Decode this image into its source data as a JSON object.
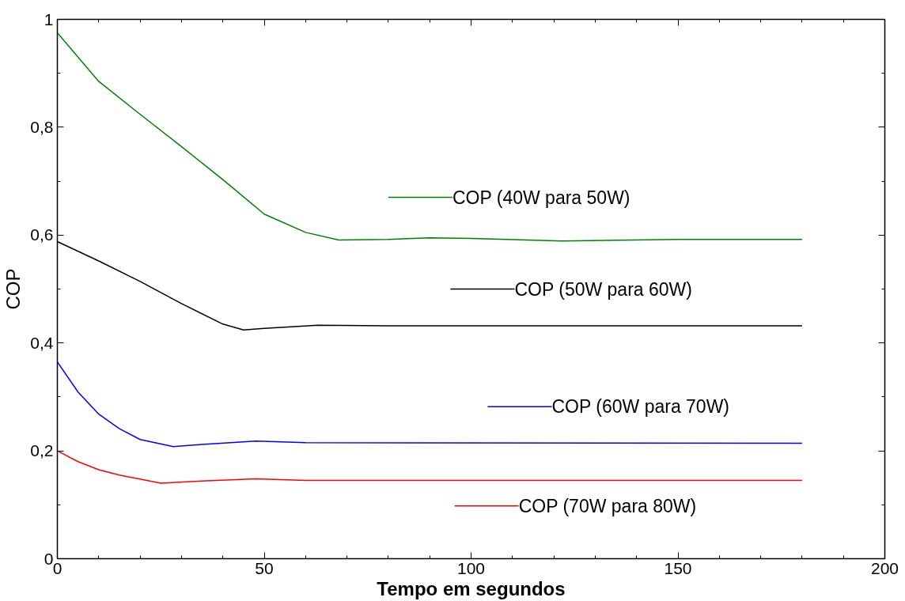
{
  "chart_data": {
    "type": "line",
    "xlabel": "Tempo em segundos",
    "ylabel": "COP",
    "xlim": [
      0,
      200
    ],
    "xticks": [
      0,
      50,
      100,
      150,
      200
    ],
    "ylim": [
      0,
      1
    ],
    "yticks": [
      0,
      {
        "value": 0.2,
        "label": "0,2"
      },
      {
        "value": 0.4,
        "label": "0,4"
      },
      {
        "value": 0.6,
        "label": "0,6"
      },
      {
        "value": 0.8,
        "label": "0,8"
      },
      1
    ],
    "grid": false,
    "legend": "right",
    "line_style": "solid",
    "marker": "none",
    "series": [
      {
        "name": "COP (40W para 50W)",
        "color": "#008000",
        "x": [
          0,
          10,
          20,
          30,
          40,
          50,
          60,
          68,
          80,
          90,
          100,
          122,
          150,
          180
        ],
        "values": [
          0.975,
          0.885,
          0.824,
          0.764,
          0.703,
          0.639,
          0.605,
          0.591,
          0.592,
          0.595,
          0.594,
          0.589,
          0.592,
          0.592
        ]
      },
      {
        "name": "COP (50W para 60W)",
        "color": "#000000",
        "x": [
          0,
          10,
          20,
          30,
          40,
          45,
          50,
          63,
          80,
          180
        ],
        "values": [
          0.588,
          0.552,
          0.514,
          0.473,
          0.435,
          0.424,
          0.427,
          0.433,
          0.432,
          0.432
        ]
      },
      {
        "name": "COP (60W para 70W)",
        "color": "#0000ff",
        "x": [
          0,
          5,
          10,
          15,
          20,
          28,
          35,
          48,
          60,
          180
        ],
        "values": [
          0.365,
          0.309,
          0.268,
          0.241,
          0.221,
          0.208,
          0.212,
          0.218,
          0.215,
          0.214
        ]
      },
      {
        "name": "COP (70W para 80W)",
        "color": "#ff0000",
        "x": [
          0,
          5,
          10,
          15,
          25,
          35,
          48,
          60,
          180
        ],
        "values": [
          0.2,
          0.18,
          0.165,
          0.155,
          0.14,
          0.144,
          0.148,
          0.145,
          0.145
        ]
      }
    ]
  }
}
